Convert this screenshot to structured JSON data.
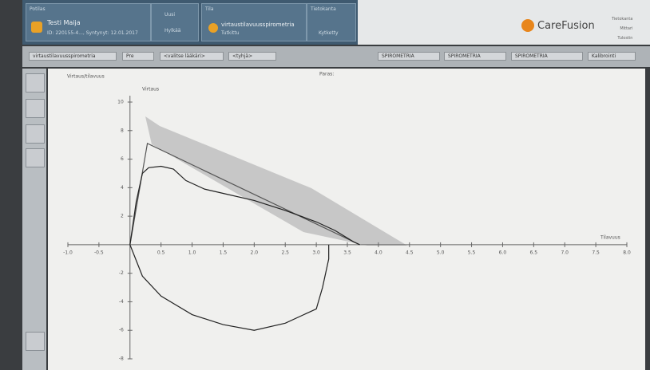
{
  "header": {
    "patient_label": "Potilas",
    "patient_name": "Testi Maija",
    "patient_id": "ID: 220155-4..., Syntynyt: 12.01.2017",
    "new_button": "Uusi",
    "other_button": "Hylkää",
    "status_label": "Tila",
    "test_name": "virtaustilavuusspirometria",
    "test_status": "Tutkittu",
    "db_label": "Tietokanta",
    "db_status": "Kytketty",
    "brand": "CareFusion",
    "indicators": [
      "Tietokanta",
      "Mittari",
      "Tulostin"
    ]
  },
  "toolbar": {
    "test": "virtaustilavuusspirometria",
    "phase": "Pre",
    "doctor": "<valitse lääkäri>",
    "empty": "<tyhjä>",
    "tabs": [
      "SPIROMETRIA",
      "SPIROMETRIA",
      "SPIROMETRIA"
    ],
    "calibrate": "Kalibrointi"
  },
  "chart_data": {
    "type": "line",
    "title": "Virtaus/tilavuus",
    "legend_label": "Paras:",
    "ylabel": "Virtaus",
    "xlabel": "Tilavuus",
    "xlim": [
      -1.0,
      8.0
    ],
    "ylim": [
      -8,
      10
    ],
    "xticks": [
      {
        "value": -1.0,
        "label": "-1.0"
      },
      -0.5,
      0.5,
      {
        "value": 1.0,
        "label": "1.0"
      },
      1.5,
      {
        "value": 2.0,
        "label": "2.0"
      },
      2.5,
      {
        "value": 3.0,
        "label": "3.0"
      },
      3.5,
      {
        "value": 4.0,
        "label": "4.0"
      },
      4.5,
      {
        "value": 5.0,
        "label": "5.0"
      },
      5.5,
      {
        "value": 6.0,
        "label": "6.0"
      },
      6.5,
      {
        "value": 7.0,
        "label": "7.0"
      },
      7.5,
      {
        "value": 8.0,
        "label": "8.0"
      }
    ],
    "yticks": [
      10,
      8,
      6,
      4,
      2,
      -2,
      -4,
      -6,
      -8
    ],
    "series": [
      {
        "color": "#555555",
        "x": [
          0,
          0.28,
          3.7
        ],
        "values": [
          0,
          7.1,
          0
        ]
      },
      {
        "color": "#222222",
        "x": [
          0,
          0.1,
          0.2,
          0.3,
          0.5,
          0.7,
          0.9,
          1.2,
          1.5,
          2.0,
          2.5,
          3.0,
          3.3,
          3.6,
          3.7
        ],
        "values": [
          0,
          3,
          5,
          5.4,
          5.5,
          5.3,
          4.5,
          3.9,
          3.6,
          3.1,
          2.4,
          1.6,
          1.0,
          0.2,
          0
        ]
      },
      {
        "color": "#222222",
        "x": [
          0,
          0.2,
          0.5,
          1.0,
          1.5,
          2.0,
          2.5,
          3.0,
          3.1,
          3.2,
          3.2
        ],
        "values": [
          0,
          -2.2,
          -3.6,
          -4.9,
          -5.6,
          -6.0,
          -5.5,
          -4.5,
          -3,
          -1,
          0
        ]
      }
    ]
  }
}
